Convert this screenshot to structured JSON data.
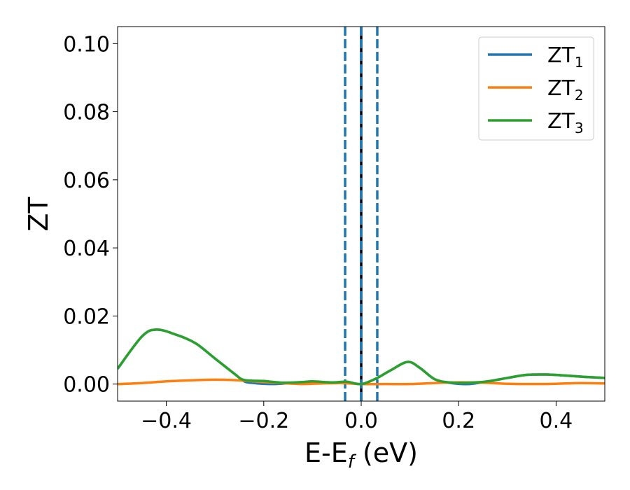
{
  "chart_data": {
    "type": "line",
    "title": "",
    "xlabel": {
      "base": "E-E",
      "sub": "f",
      "suffix": " (eV)"
    },
    "ylabel": "ZT",
    "xlim": [
      -0.5,
      0.5
    ],
    "ylim": [
      -0.005,
      0.105
    ],
    "x_ticks": [
      -0.4,
      -0.2,
      0.0,
      0.2,
      0.4
    ],
    "x_tick_labels": [
      "−0.4",
      "−0.2",
      "0.0",
      "0.2",
      "0.4"
    ],
    "y_ticks": [
      0.0,
      0.02,
      0.04,
      0.06,
      0.08,
      0.1
    ],
    "y_tick_labels": [
      "0.00",
      "0.02",
      "0.04",
      "0.06",
      "0.08",
      "0.10"
    ],
    "grid": false,
    "legend_position": "top-right",
    "vertical_lines": [
      {
        "x": -0.033,
        "style": "dashed",
        "color": "#1f77b4"
      },
      {
        "x": 0.0,
        "style": "solid",
        "color": "#000000"
      },
      {
        "x": 0.0,
        "style": "dashed",
        "color": "#1f77b4"
      },
      {
        "x": 0.033,
        "style": "dashed",
        "color": "#1f77b4"
      }
    ],
    "series": [
      {
        "name": "ZT",
        "name_sub": "1",
        "color": "#1f77b4",
        "points": [
          [
            -0.5,
            0.0045
          ],
          [
            -0.45,
            0.014
          ],
          [
            -0.42,
            0.016
          ],
          [
            -0.38,
            0.0145
          ],
          [
            -0.34,
            0.012
          ],
          [
            -0.3,
            0.0075
          ],
          [
            -0.26,
            0.003
          ],
          [
            -0.24,
            0.0008
          ],
          [
            -0.22,
            0.0003
          ],
          [
            -0.18,
            0.0
          ],
          [
            -0.14,
            0.0004
          ],
          [
            -0.1,
            0.0007
          ],
          [
            -0.06,
            0.0003
          ],
          [
            -0.03,
            0.0006
          ],
          [
            0.0,
            0.0
          ],
          [
            0.03,
            0.0016
          ],
          [
            0.06,
            0.004
          ],
          [
            0.095,
            0.0065
          ],
          [
            0.12,
            0.0048
          ],
          [
            0.15,
            0.0015
          ],
          [
            0.18,
            0.0004
          ],
          [
            0.22,
            0.0
          ],
          [
            0.26,
            0.0008
          ],
          [
            0.3,
            0.0018
          ],
          [
            0.34,
            0.0027
          ],
          [
            0.38,
            0.0028
          ],
          [
            0.42,
            0.0025
          ],
          [
            0.46,
            0.0021
          ],
          [
            0.5,
            0.0018
          ]
        ]
      },
      {
        "name": "ZT",
        "name_sub": "2",
        "color": "#ff7f0e",
        "points": [
          [
            -0.5,
            0.0
          ],
          [
            -0.45,
            0.0003
          ],
          [
            -0.4,
            0.0008
          ],
          [
            -0.35,
            0.0011
          ],
          [
            -0.3,
            0.0013
          ],
          [
            -0.25,
            0.0011
          ],
          [
            -0.2,
            0.0006
          ],
          [
            -0.15,
            0.0002
          ],
          [
            -0.12,
            0.0
          ],
          [
            -0.08,
            0.0002
          ],
          [
            -0.04,
            0.0003
          ],
          [
            0.0,
            0.0
          ],
          [
            0.05,
            0.0
          ],
          [
            0.1,
            0.0
          ],
          [
            0.15,
            0.0003
          ],
          [
            0.2,
            0.0005
          ],
          [
            0.25,
            0.0004
          ],
          [
            0.3,
            0.0001
          ],
          [
            0.35,
            0.0
          ],
          [
            0.4,
            0.0001
          ],
          [
            0.45,
            0.0003
          ],
          [
            0.5,
            0.0002
          ]
        ]
      },
      {
        "name": "ZT",
        "name_sub": "3",
        "color": "#2ca02c",
        "points": [
          [
            -0.5,
            0.0045
          ],
          [
            -0.45,
            0.014
          ],
          [
            -0.42,
            0.016
          ],
          [
            -0.38,
            0.0145
          ],
          [
            -0.34,
            0.012
          ],
          [
            -0.3,
            0.0075
          ],
          [
            -0.26,
            0.003
          ],
          [
            -0.24,
            0.0012
          ],
          [
            -0.2,
            0.0009
          ],
          [
            -0.16,
            0.0004
          ],
          [
            -0.12,
            0.0006
          ],
          [
            -0.1,
            0.0008
          ],
          [
            -0.06,
            0.0005
          ],
          [
            -0.03,
            0.0007
          ],
          [
            0.0,
            0.0
          ],
          [
            0.03,
            0.0016
          ],
          [
            0.06,
            0.004
          ],
          [
            0.095,
            0.0065
          ],
          [
            0.12,
            0.0048
          ],
          [
            0.15,
            0.0015
          ],
          [
            0.18,
            0.0005
          ],
          [
            0.22,
            0.0004
          ],
          [
            0.26,
            0.0008
          ],
          [
            0.3,
            0.0018
          ],
          [
            0.34,
            0.0027
          ],
          [
            0.38,
            0.0028
          ],
          [
            0.42,
            0.0025
          ],
          [
            0.46,
            0.0021
          ],
          [
            0.5,
            0.0018
          ]
        ]
      }
    ]
  }
}
